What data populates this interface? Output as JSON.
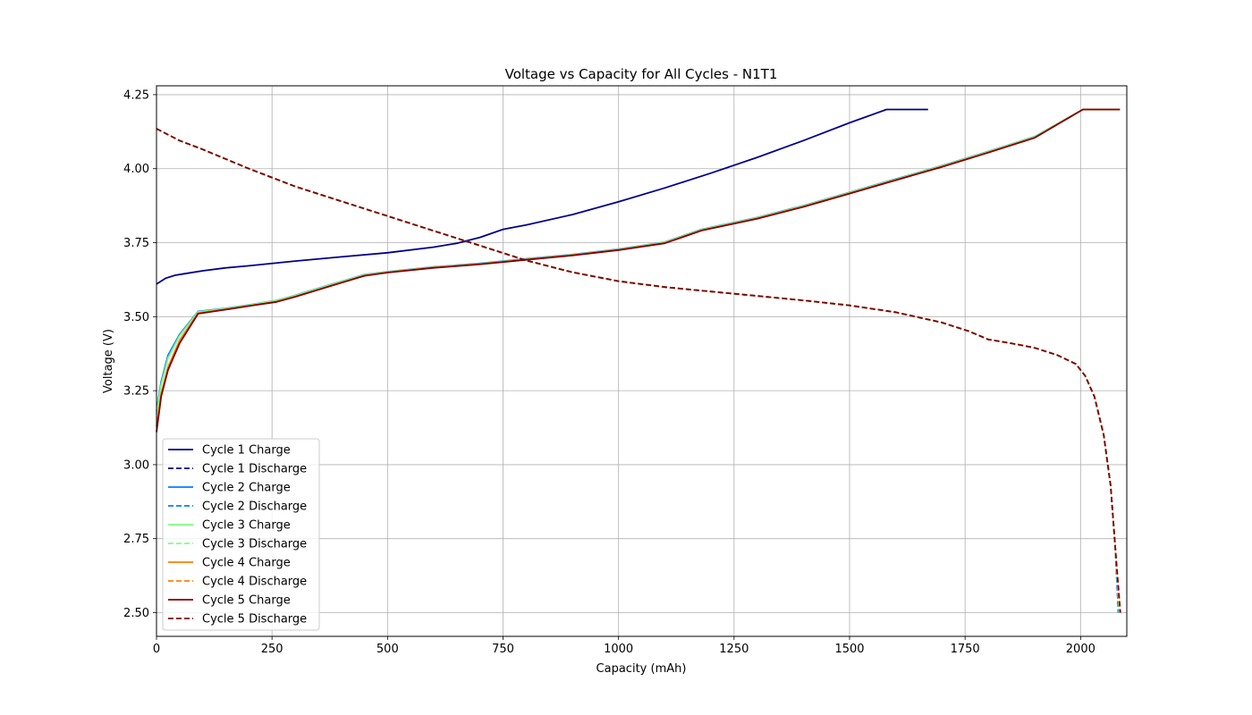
{
  "chart_data": {
    "type": "line",
    "title": "Voltage vs Capacity for All Cycles - N1T1",
    "xlabel": "Capacity (mAh)",
    "ylabel": "Voltage (V)",
    "xlim": [
      0,
      2100
    ],
    "ylim": [
      2.42,
      4.28
    ],
    "xticks": [
      0,
      250,
      500,
      750,
      1000,
      1250,
      1500,
      1750,
      2000
    ],
    "yticks": [
      2.5,
      2.75,
      3.0,
      3.25,
      3.5,
      3.75,
      4.0,
      4.25
    ],
    "xtick_labels": [
      "0",
      "250",
      "500",
      "750",
      "1000",
      "1250",
      "1500",
      "1750",
      "2000"
    ],
    "ytick_labels": [
      "2.50",
      "2.75",
      "3.00",
      "3.25",
      "3.50",
      "3.75",
      "4.00",
      "4.25"
    ],
    "grid": true,
    "legend_position": "lower-left",
    "series": [
      {
        "name": "Cycle 1 Charge",
        "color": "#00008b",
        "dash": false,
        "x": [
          0,
          20,
          40,
          60,
          100,
          150,
          200,
          300,
          400,
          500,
          600,
          650,
          700,
          750,
          800,
          900,
          1000,
          1100,
          1200,
          1300,
          1400,
          1500,
          1580,
          1670
        ],
        "y": [
          3.61,
          3.63,
          3.64,
          3.645,
          3.655,
          3.665,
          3.672,
          3.688,
          3.702,
          3.716,
          3.735,
          3.748,
          3.768,
          3.795,
          3.81,
          3.845,
          3.888,
          3.935,
          3.985,
          4.038,
          4.095,
          4.155,
          4.2,
          4.2
        ]
      },
      {
        "name": "Cycle 1 Discharge",
        "color": "#00008b",
        "dash": true,
        "x": [
          0,
          50,
          100,
          200,
          300,
          400,
          500,
          600,
          700,
          800,
          900,
          1000,
          1100,
          1200,
          1300,
          1400,
          1500,
          1600,
          1700,
          1760,
          1800,
          1850,
          1900,
          1950,
          1990,
          2010,
          2030,
          2050,
          2065,
          2075,
          2082
        ],
        "y": [
          4.135,
          4.095,
          4.065,
          4.0,
          3.94,
          3.89,
          3.84,
          3.79,
          3.74,
          3.69,
          3.65,
          3.62,
          3.6,
          3.585,
          3.57,
          3.555,
          3.538,
          3.515,
          3.48,
          3.45,
          3.423,
          3.41,
          3.395,
          3.37,
          3.34,
          3.3,
          3.23,
          3.1,
          2.93,
          2.72,
          2.5
        ]
      },
      {
        "name": "Cycle 2 Charge",
        "color": "#0080ff",
        "dash": false,
        "x": [
          0,
          10,
          25,
          50,
          90,
          150,
          200,
          260,
          300,
          380,
          450,
          500,
          600,
          700,
          800,
          900,
          1000,
          1100,
          1180,
          1300,
          1400,
          1500,
          1600,
          1700,
          1800,
          1900,
          2005,
          2085
        ],
        "y": [
          3.18,
          3.28,
          3.37,
          3.44,
          3.518,
          3.528,
          3.54,
          3.555,
          3.572,
          3.61,
          3.642,
          3.652,
          3.668,
          3.68,
          3.695,
          3.71,
          3.728,
          3.752,
          3.795,
          3.835,
          3.875,
          3.92,
          3.965,
          4.01,
          4.058,
          4.108,
          4.2,
          4.2
        ]
      },
      {
        "name": "Cycle 2 Discharge",
        "color": "#0080ff",
        "dash": true,
        "x": [
          0,
          50,
          100,
          200,
          300,
          400,
          500,
          600,
          700,
          800,
          900,
          1000,
          1100,
          1200,
          1300,
          1400,
          1500,
          1600,
          1700,
          1760,
          1800,
          1850,
          1900,
          1950,
          1990,
          2010,
          2030,
          2050,
          2065,
          2075,
          2082
        ],
        "y": [
          4.135,
          4.095,
          4.065,
          4.0,
          3.94,
          3.89,
          3.84,
          3.79,
          3.74,
          3.69,
          3.65,
          3.62,
          3.6,
          3.585,
          3.57,
          3.555,
          3.538,
          3.515,
          3.48,
          3.45,
          3.423,
          3.41,
          3.395,
          3.37,
          3.34,
          3.3,
          3.23,
          3.1,
          2.93,
          2.72,
          2.5
        ]
      },
      {
        "name": "Cycle 3 Charge",
        "color": "#80ff80",
        "dash": false,
        "x": [
          0,
          10,
          25,
          50,
          90,
          150,
          200,
          260,
          300,
          380,
          450,
          500,
          600,
          700,
          800,
          900,
          1000,
          1100,
          1180,
          1300,
          1400,
          1500,
          1600,
          1700,
          1800,
          1900,
          2005,
          2085
        ],
        "y": [
          3.17,
          3.27,
          3.36,
          3.435,
          3.516,
          3.527,
          3.539,
          3.554,
          3.571,
          3.609,
          3.641,
          3.651,
          3.667,
          3.679,
          3.694,
          3.709,
          3.727,
          3.751,
          3.794,
          3.834,
          3.874,
          3.919,
          3.964,
          4.009,
          4.057,
          4.107,
          4.2,
          4.2
        ]
      },
      {
        "name": "Cycle 3 Discharge",
        "color": "#80ff80",
        "dash": true,
        "x": [
          0,
          50,
          100,
          200,
          300,
          400,
          500,
          600,
          700,
          800,
          900,
          1000,
          1100,
          1200,
          1300,
          1400,
          1500,
          1600,
          1700,
          1760,
          1800,
          1850,
          1900,
          1950,
          1990,
          2010,
          2030,
          2050,
          2065,
          2075,
          2084
        ],
        "y": [
          4.135,
          4.095,
          4.065,
          4.0,
          3.94,
          3.89,
          3.84,
          3.79,
          3.74,
          3.69,
          3.65,
          3.62,
          3.6,
          3.585,
          3.57,
          3.555,
          3.538,
          3.515,
          3.48,
          3.45,
          3.423,
          3.41,
          3.395,
          3.37,
          3.34,
          3.3,
          3.23,
          3.1,
          2.93,
          2.72,
          2.5
        ]
      },
      {
        "name": "Cycle 4 Charge",
        "color": "#ff8000",
        "dash": false,
        "x": [
          0,
          10,
          25,
          50,
          90,
          150,
          200,
          260,
          300,
          380,
          450,
          500,
          600,
          700,
          800,
          900,
          1000,
          1100,
          1180,
          1300,
          1400,
          1500,
          1600,
          1700,
          1800,
          1900,
          2005,
          2085
        ],
        "y": [
          3.13,
          3.24,
          3.33,
          3.42,
          3.512,
          3.525,
          3.537,
          3.551,
          3.568,
          3.606,
          3.639,
          3.65,
          3.666,
          3.678,
          3.693,
          3.708,
          3.726,
          3.749,
          3.792,
          3.832,
          3.872,
          3.917,
          3.962,
          4.007,
          4.055,
          4.105,
          4.2,
          4.2
        ]
      },
      {
        "name": "Cycle 4 Discharge",
        "color": "#ff8000",
        "dash": true,
        "x": [
          0,
          50,
          100,
          200,
          300,
          400,
          500,
          600,
          700,
          800,
          900,
          1000,
          1100,
          1200,
          1300,
          1400,
          1500,
          1600,
          1700,
          1760,
          1800,
          1850,
          1900,
          1950,
          1990,
          2010,
          2030,
          2050,
          2065,
          2075,
          2085
        ],
        "y": [
          4.135,
          4.095,
          4.065,
          4.0,
          3.94,
          3.89,
          3.84,
          3.79,
          3.74,
          3.69,
          3.65,
          3.62,
          3.6,
          3.585,
          3.57,
          3.555,
          3.538,
          3.515,
          3.48,
          3.45,
          3.423,
          3.41,
          3.395,
          3.37,
          3.34,
          3.3,
          3.23,
          3.1,
          2.93,
          2.72,
          2.5
        ]
      },
      {
        "name": "Cycle 5 Charge",
        "color": "#800000",
        "dash": false,
        "x": [
          0,
          10,
          25,
          50,
          90,
          150,
          200,
          260,
          300,
          380,
          450,
          500,
          600,
          700,
          800,
          900,
          1000,
          1100,
          1180,
          1300,
          1400,
          1500,
          1600,
          1700,
          1800,
          1900,
          2005,
          2085
        ],
        "y": [
          3.11,
          3.23,
          3.32,
          3.41,
          3.51,
          3.524,
          3.536,
          3.55,
          3.567,
          3.605,
          3.638,
          3.649,
          3.665,
          3.677,
          3.692,
          3.707,
          3.725,
          3.748,
          3.791,
          3.831,
          3.871,
          3.916,
          3.961,
          4.006,
          4.054,
          4.104,
          4.2,
          4.2
        ]
      },
      {
        "name": "Cycle 5 Discharge",
        "color": "#800000",
        "dash": true,
        "x": [
          0,
          50,
          100,
          200,
          300,
          400,
          500,
          600,
          700,
          800,
          900,
          1000,
          1100,
          1200,
          1300,
          1400,
          1500,
          1600,
          1700,
          1760,
          1800,
          1850,
          1900,
          1950,
          1990,
          2010,
          2030,
          2050,
          2065,
          2075,
          2086
        ],
        "y": [
          4.135,
          4.095,
          4.065,
          4.0,
          3.94,
          3.89,
          3.84,
          3.79,
          3.74,
          3.69,
          3.65,
          3.62,
          3.6,
          3.585,
          3.57,
          3.555,
          3.538,
          3.515,
          3.48,
          3.45,
          3.423,
          3.41,
          3.395,
          3.37,
          3.34,
          3.3,
          3.23,
          3.1,
          2.93,
          2.72,
          2.5
        ]
      }
    ]
  }
}
